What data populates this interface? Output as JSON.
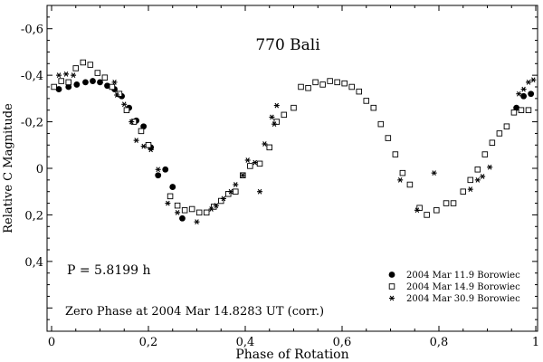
{
  "chart_data": {
    "type": "scatter",
    "title": "770 Bali",
    "xlabel": "Phase of Rotation",
    "ylabel": "Relative C Magnitude",
    "xlim": [
      0,
      1
    ],
    "ylim": [
      0.7,
      -0.7
    ],
    "y_inverted": true,
    "x_ticks": [
      0,
      0.2,
      0.4,
      0.6,
      0.8,
      1
    ],
    "x_tick_labels": [
      "0",
      "0,2",
      "0,4",
      "0,6",
      "0,8",
      "1"
    ],
    "y_ticks": [
      -0.6,
      -0.4,
      -0.2,
      0,
      0.2,
      0.4
    ],
    "y_tick_labels": [
      "-0,6",
      "-0,4",
      "-0,2",
      "0",
      "0,2",
      "0,4"
    ],
    "grid": false,
    "legend_position": "bottom-right",
    "annotations": [
      "P = 5.8199 h",
      "Zero Phase at 2004 Mar 14.8283 UT (corr.)"
    ],
    "series": [
      {
        "name": "2004 Mar 11.9 Borowiec",
        "marker": "filled-circle",
        "x": [
          0.015,
          0.035,
          0.052,
          0.07,
          0.085,
          0.1,
          0.115,
          0.13,
          0.145,
          0.16,
          0.175,
          0.19,
          0.205,
          0.22,
          0.235,
          0.25,
          0.27,
          0.96,
          0.975,
          0.99
        ],
        "y": [
          -0.34,
          -0.35,
          -0.36,
          -0.37,
          -0.375,
          -0.37,
          -0.355,
          -0.34,
          -0.31,
          -0.26,
          -0.205,
          -0.18,
          -0.09,
          0.03,
          0.005,
          0.08,
          0.215,
          -0.26,
          -0.31,
          -0.32
        ]
      },
      {
        "name": "2004 Mar 14.9 Borowiec",
        "marker": "open-square",
        "x": [
          0.005,
          0.02,
          0.035,
          0.05,
          0.065,
          0.08,
          0.095,
          0.11,
          0.125,
          0.14,
          0.155,
          0.17,
          0.185,
          0.2,
          0.245,
          0.26,
          0.275,
          0.29,
          0.305,
          0.32,
          0.335,
          0.35,
          0.365,
          0.38,
          0.395,
          0.41,
          0.43,
          0.45,
          0.465,
          0.48,
          0.5,
          0.515,
          0.53,
          0.545,
          0.56,
          0.575,
          0.59,
          0.605,
          0.62,
          0.635,
          0.65,
          0.665,
          0.68,
          0.695,
          0.71,
          0.725,
          0.74,
          0.76,
          0.775,
          0.795,
          0.815,
          0.83,
          0.85,
          0.865,
          0.88,
          0.895,
          0.91,
          0.925,
          0.94,
          0.955,
          0.97,
          0.985
        ],
        "y": [
          -0.35,
          -0.375,
          -0.37,
          -0.43,
          -0.455,
          -0.445,
          -0.41,
          -0.39,
          -0.35,
          -0.32,
          -0.25,
          -0.2,
          -0.16,
          -0.1,
          0.12,
          0.16,
          0.18,
          0.175,
          0.19,
          0.19,
          0.165,
          0.14,
          0.11,
          0.1,
          0.03,
          -0.01,
          -0.02,
          -0.09,
          -0.2,
          -0.23,
          -0.26,
          -0.35,
          -0.345,
          -0.37,
          -0.36,
          -0.375,
          -0.37,
          -0.365,
          -0.35,
          -0.33,
          -0.29,
          -0.26,
          -0.19,
          -0.13,
          -0.06,
          0.02,
          0.07,
          0.17,
          0.2,
          0.18,
          0.15,
          0.15,
          0.1,
          0.05,
          0.005,
          -0.06,
          -0.11,
          -0.15,
          -0.18,
          -0.24,
          -0.25,
          -0.25
        ]
      },
      {
        "name": "2004 Mar 30.9 Borowiec",
        "marker": "asterisk",
        "x": [
          0.015,
          0.03,
          0.045,
          0.13,
          0.135,
          0.15,
          0.165,
          0.175,
          0.19,
          0.205,
          0.22,
          0.24,
          0.26,
          0.3,
          0.33,
          0.34,
          0.355,
          0.37,
          0.38,
          0.395,
          0.405,
          0.42,
          0.43,
          0.44,
          0.455,
          0.46,
          0.465,
          0.72,
          0.755,
          0.79,
          0.865,
          0.88,
          0.89,
          0.905,
          0.965,
          0.975,
          0.985,
          0.995
        ],
        "y": [
          -0.4,
          -0.405,
          -0.4,
          -0.37,
          -0.315,
          -0.275,
          -0.2,
          -0.12,
          -0.095,
          -0.08,
          0.005,
          0.15,
          0.19,
          0.23,
          0.175,
          0.16,
          0.13,
          0.1,
          0.07,
          0.03,
          -0.035,
          -0.025,
          0.1,
          -0.105,
          -0.22,
          -0.19,
          -0.27,
          0.05,
          0.18,
          0.02,
          0.09,
          0.05,
          0.035,
          -0.005,
          -0.32,
          -0.34,
          -0.37,
          -0.38
        ]
      }
    ]
  }
}
